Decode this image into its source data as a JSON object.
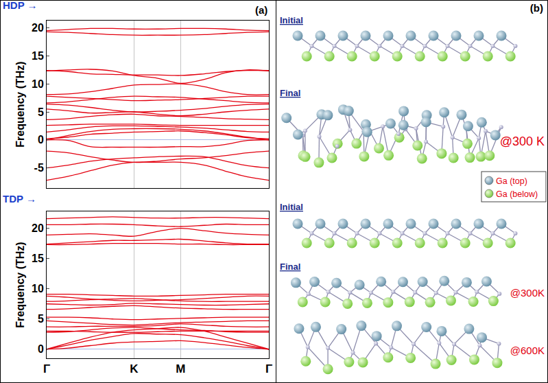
{
  "chart_data": [
    {
      "type": "line",
      "title": "HDP →",
      "y_label": "Frequency (THz)",
      "annotations": [
        "(a)"
      ],
      "color": "#e3000f",
      "grid": "x",
      "tick_labels": "y",
      "x": [
        0,
        0.3,
        0.61,
        0.92,
        1.22,
        1.55,
        1.87,
        2.2,
        2.5,
        2.8,
        3.1
      ],
      "xlim": [
        0,
        3.1
      ],
      "xticks": [
        {
          "value": 0,
          "label": "Γ"
        },
        {
          "value": 1.22,
          "label": "K"
        },
        {
          "value": 1.87,
          "label": "M"
        },
        {
          "value": 3.1,
          "label": "Γ"
        }
      ],
      "ylim": [
        -8.6,
        21.3
      ],
      "yticks": [
        -5,
        0,
        5,
        10,
        15,
        20
      ],
      "series": [
        {
          "values": [
            19.3,
            19.2,
            19.0,
            18.8,
            18.7,
            18.7,
            18.7,
            18.8,
            19.0,
            19.2,
            19.3
          ]
        },
        {
          "values": [
            19.5,
            19.7,
            19.9,
            19.9,
            19.8,
            19.8,
            19.9,
            19.9,
            19.8,
            19.6,
            19.5
          ]
        },
        {
          "values": [
            12.3,
            12.5,
            12.6,
            12.3,
            11.5,
            11.0,
            10.1,
            10.8,
            12.0,
            12.5,
            12.3
          ]
        },
        {
          "values": [
            12.4,
            12.2,
            11.8,
            11.7,
            11.6,
            11.6,
            11.5,
            11.8,
            12.2,
            12.4,
            12.4
          ]
        },
        {
          "values": [
            8.1,
            8.2,
            8.6,
            9.2,
            9.8,
            9.9,
            10.0,
            9.5,
            8.6,
            8.1,
            8.1
          ]
        },
        {
          "values": [
            7.8,
            7.6,
            7.4,
            7.2,
            7.0,
            7.1,
            7.2,
            7.4,
            7.6,
            7.8,
            7.8
          ]
        },
        {
          "values": [
            6.6,
            6.8,
            7.2,
            7.6,
            7.8,
            7.7,
            7.6,
            7.3,
            7.0,
            6.7,
            6.6
          ]
        },
        {
          "values": [
            6.4,
            6.2,
            5.8,
            5.3,
            5.0,
            5.1,
            5.3,
            5.6,
            6.0,
            6.3,
            6.4
          ]
        },
        {
          "values": [
            5.5,
            5.2,
            4.8,
            4.9,
            5.0,
            4.6,
            4.3,
            4.6,
            5.0,
            5.3,
            5.5
          ]
        },
        {
          "values": [
            3.6,
            3.8,
            4.2,
            4.5,
            4.6,
            4.3,
            4.2,
            4.0,
            3.8,
            3.7,
            3.6
          ]
        },
        {
          "values": [
            2.6,
            2.7,
            2.8,
            2.8,
            2.8,
            2.7,
            2.6,
            2.6,
            2.6,
            2.6,
            2.6
          ]
        },
        {
          "values": [
            1.4,
            1.8,
            2.3,
            2.5,
            2.5,
            2.4,
            2.3,
            2.1,
            1.8,
            1.5,
            1.4
          ]
        },
        {
          "values": [
            0,
            0.8,
            1.5,
            1.9,
            2.0,
            2.0,
            1.9,
            1.6,
            1.1,
            0.5,
            0
          ]
        },
        {
          "values": [
            0.2,
            0.5,
            1.0,
            1.2,
            1.4,
            1.5,
            1.6,
            1.3,
            0.9,
            0.4,
            0.2
          ]
        },
        {
          "values": [
            0,
            -0.1,
            -1.2,
            -1.3,
            -1.3,
            -1.3,
            -1.2,
            -1.2,
            -0.8,
            -0.1,
            0
          ]
        },
        {
          "values": [
            -2.0,
            -2.3,
            -3.0,
            -3.6,
            -4.0,
            -3.8,
            -3.4,
            -3.2,
            -2.8,
            -2.3,
            -2.0
          ]
        },
        {
          "values": [
            -5.0,
            -4.5,
            -3.8,
            -3.4,
            -3.2,
            -3.0,
            -2.9,
            -3.0,
            -3.8,
            -4.6,
            -5.0
          ]
        },
        {
          "values": [
            -7.2,
            -6.5,
            -5.5,
            -4.5,
            -4.0,
            -4.0,
            -4.0,
            -4.5,
            -5.6,
            -6.6,
            -7.2
          ]
        }
      ]
    },
    {
      "type": "line",
      "title": "TDP →",
      "y_label": "Frequency (THz)",
      "color": "#e3000f",
      "grid": "x",
      "x": [
        0,
        0.3,
        0.61,
        0.92,
        1.22,
        1.55,
        1.87,
        2.2,
        2.5,
        2.8,
        3.1
      ],
      "xlim": [
        0,
        3.1
      ],
      "xticks": [
        {
          "value": 0,
          "label": "Γ"
        },
        {
          "value": 1.22,
          "label": "K"
        },
        {
          "value": 1.87,
          "label": "M"
        },
        {
          "value": 3.1,
          "label": "Γ"
        }
      ],
      "ylim": [
        -1.5,
        22.8
      ],
      "yticks": [
        0,
        5,
        10,
        15,
        20
      ],
      "series": [
        {
          "values": [
            21.6,
            21.7,
            21.8,
            21.9,
            21.8,
            21.7,
            21.7,
            21.8,
            21.8,
            21.7,
            21.6
          ]
        },
        {
          "values": [
            20.6,
            20.6,
            20.7,
            20.7,
            20.6,
            20.4,
            20.3,
            20.5,
            20.7,
            20.6,
            20.6
          ]
        },
        {
          "values": [
            18.9,
            19.0,
            19.1,
            18.9,
            18.7,
            19.5,
            20.0,
            19.6,
            19.2,
            19.0,
            18.9
          ]
        },
        {
          "values": [
            17.4,
            17.6,
            17.8,
            18.0,
            18.0,
            18.1,
            18.2,
            17.9,
            17.6,
            17.4,
            17.4
          ]
        },
        {
          "values": [
            17.3,
            17.3,
            17.4,
            17.5,
            17.5,
            17.5,
            17.4,
            17.4,
            17.3,
            17.3,
            17.3
          ]
        },
        {
          "values": [
            9.1,
            9.1,
            9.0,
            8.9,
            8.8,
            8.8,
            8.9,
            9.0,
            9.1,
            9.1,
            9.1
          ]
        },
        {
          "values": [
            8.8,
            8.6,
            8.3,
            8.1,
            8.0,
            8.1,
            8.2,
            8.4,
            8.6,
            8.8,
            8.8
          ]
        },
        {
          "values": [
            7.9,
            8.0,
            8.2,
            8.3,
            8.4,
            8.2,
            8.0,
            7.9,
            7.9,
            7.9,
            7.9
          ]
        },
        {
          "values": [
            7.5,
            7.4,
            7.3,
            7.4,
            7.6,
            7.5,
            7.4,
            7.3,
            7.3,
            7.4,
            7.5
          ]
        },
        {
          "values": [
            6.6,
            6.7,
            6.9,
            7.1,
            7.2,
            7.0,
            6.8,
            6.7,
            6.6,
            6.6,
            6.6
          ]
        },
        {
          "values": [
            5.3,
            5.3,
            5.2,
            5.0,
            4.9,
            5.0,
            5.1,
            5.2,
            5.3,
            5.3,
            5.3
          ]
        },
        {
          "values": [
            4.7,
            4.5,
            4.3,
            4.1,
            4.0,
            4.2,
            4.4,
            4.5,
            4.6,
            4.7,
            4.7
          ]
        },
        {
          "values": [
            3.7,
            3.7,
            3.8,
            3.8,
            3.8,
            3.9,
            4.2,
            4.0,
            3.8,
            3.7,
            3.7
          ]
        },
        {
          "values": [
            3.0,
            3.0,
            2.9,
            2.8,
            2.8,
            2.9,
            3.0,
            3.0,
            3.0,
            3.0,
            3.0
          ]
        },
        {
          "values": [
            2.8,
            2.9,
            3.2,
            3.5,
            3.6,
            3.4,
            3.2,
            3.1,
            2.9,
            2.8,
            2.8
          ]
        },
        {
          "values": [
            0,
            1.0,
            2.0,
            2.8,
            3.2,
            3.4,
            3.6,
            3.0,
            2.0,
            1.0,
            0
          ]
        },
        {
          "values": [
            0,
            0.7,
            1.5,
            2.1,
            2.6,
            2.5,
            2.4,
            1.9,
            1.3,
            0.6,
            0
          ]
        },
        {
          "values": [
            0,
            0.2,
            0.6,
            1.0,
            1.2,
            1.3,
            1.4,
            1.1,
            0.7,
            0.3,
            0
          ]
        }
      ]
    }
  ],
  "panel_b": {
    "label": "(b)",
    "snapshots": [
      {
        "heading": "Initial"
      },
      {
        "heading": "Final",
        "temperature": "@300 K"
      },
      {
        "heading": "Initial"
      },
      {
        "heading": "Final",
        "temperature": "@300K"
      },
      {
        "temperature": "@600K"
      }
    ],
    "legend": [
      {
        "label": "Ga (top)",
        "color": "#5f8ba3"
      },
      {
        "label": "Ga (below)",
        "color": "#76c83a"
      }
    ]
  }
}
